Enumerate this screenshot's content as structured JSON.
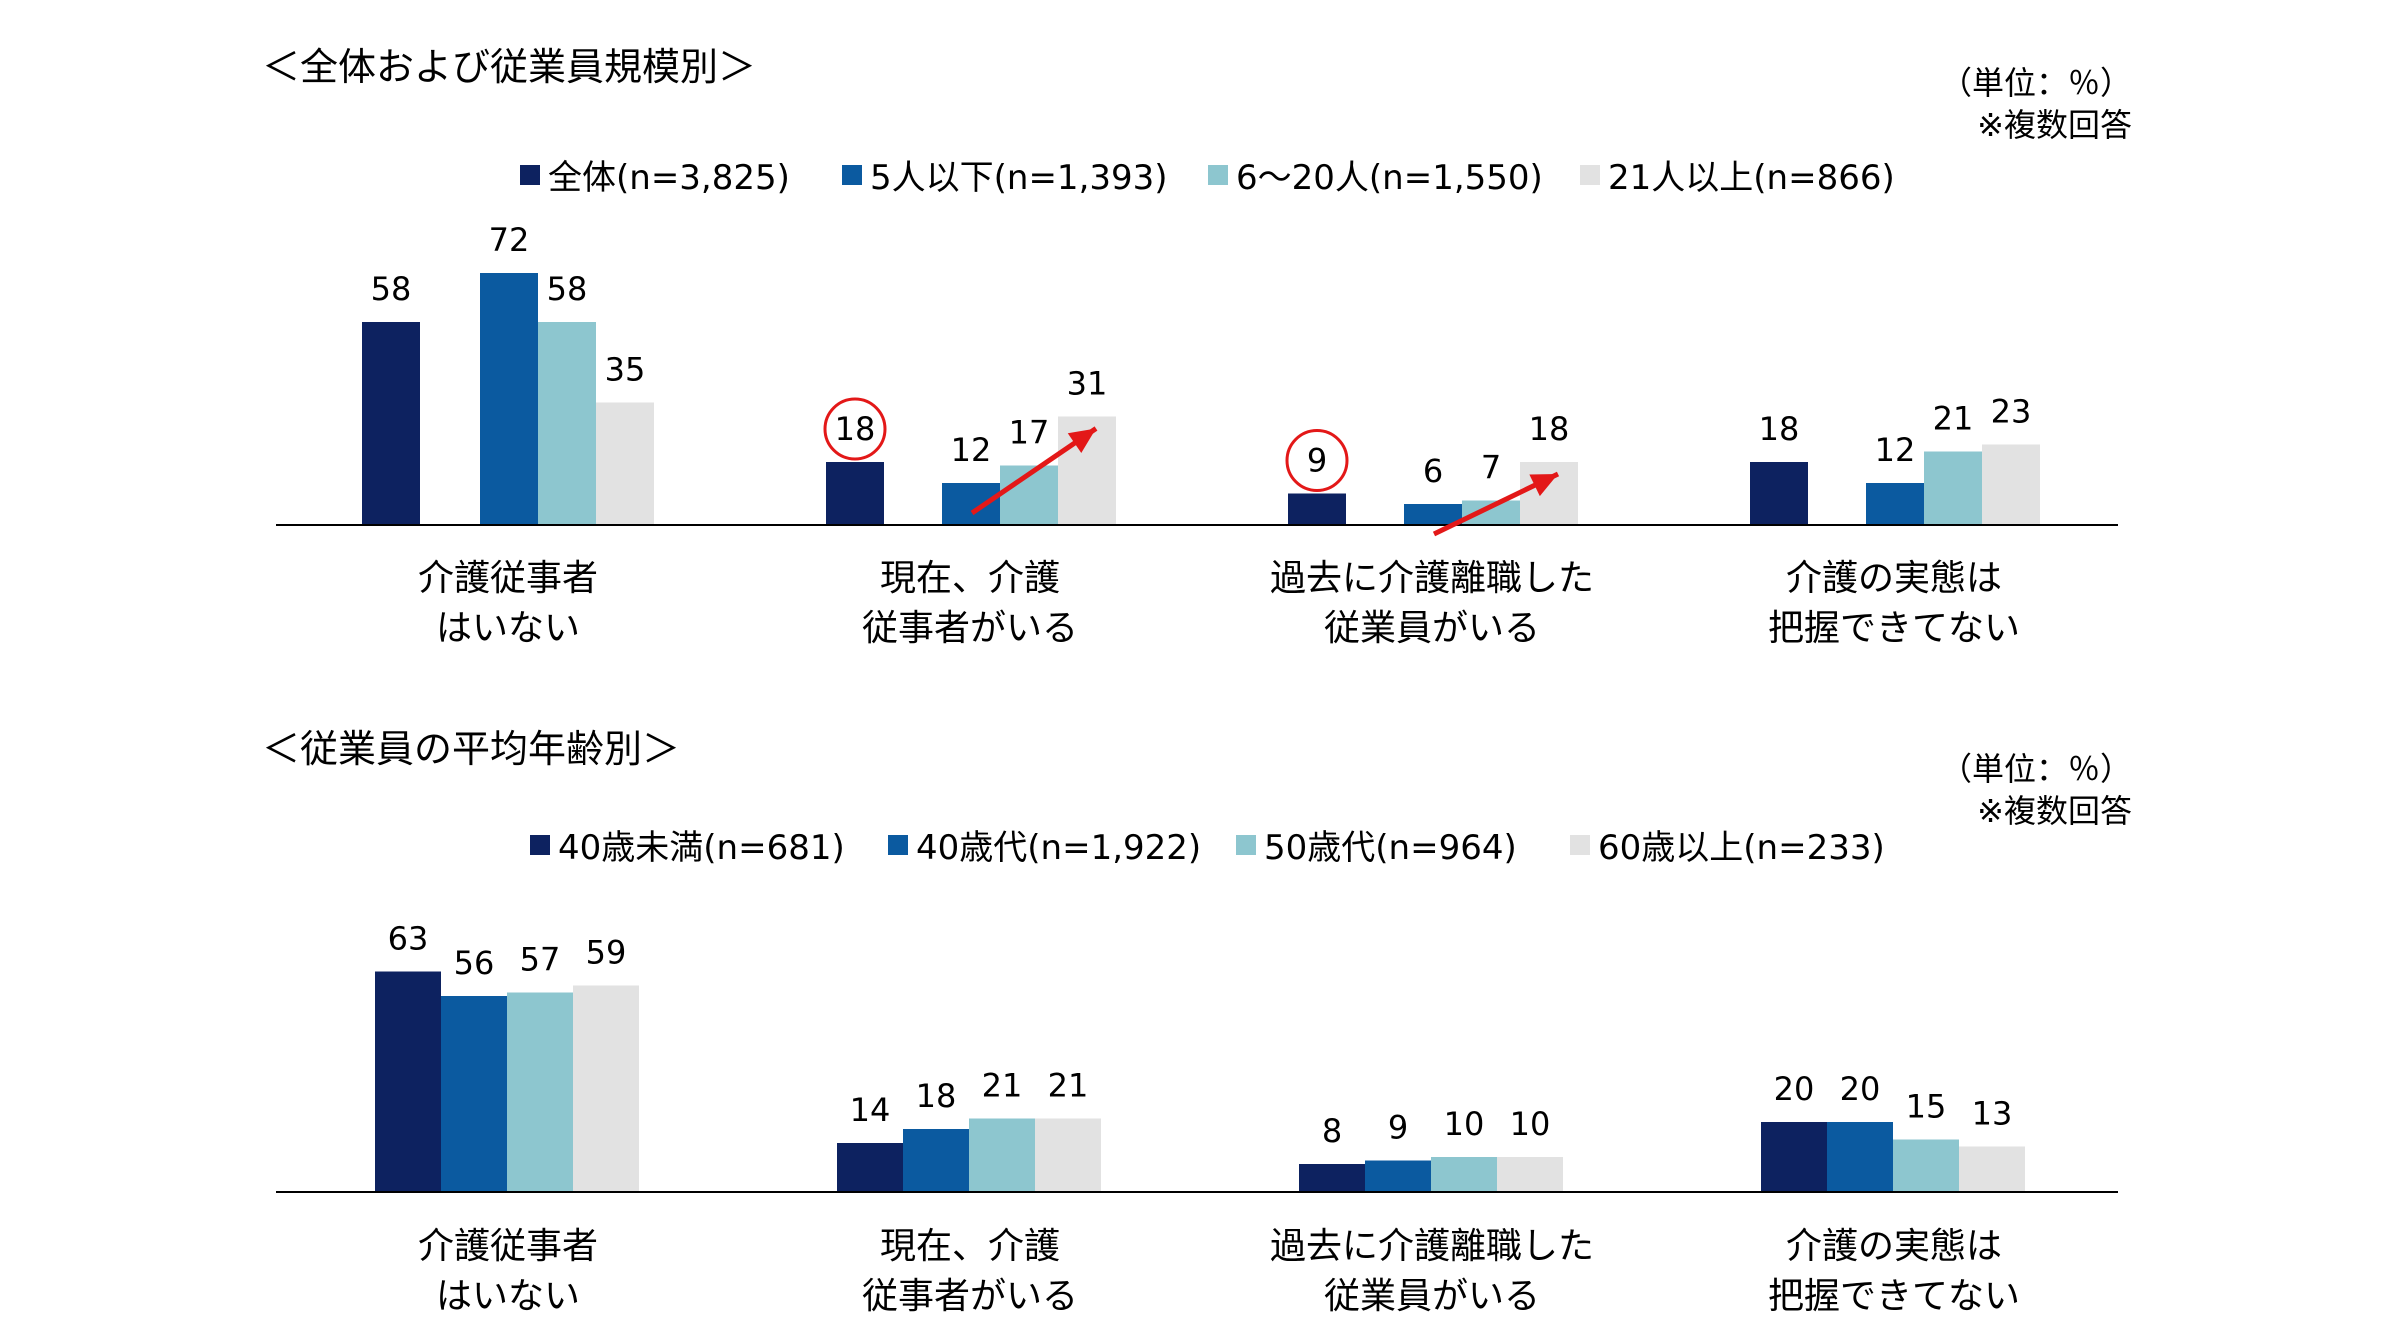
{
  "colors": {
    "navy": "#0d2260",
    "blue": "#0b5aa0",
    "teal": "#8dc6cf",
    "gray": "#e2e2e2",
    "highlight": "#e31818",
    "axis": "#000000"
  },
  "chart_data": [
    {
      "type": "bar",
      "title": "＜全体および従業員規模別＞",
      "unit": "（単位：％）",
      "note": "※複数回答",
      "categories": [
        [
          "介護従事者",
          "はいない"
        ],
        [
          "現在、介護",
          "従事者がいる"
        ],
        [
          "過去に介護離職した",
          "従業員がいる"
        ],
        [
          "介護の実態は",
          "把握できてない"
        ]
      ],
      "series": [
        {
          "name": "全体(n=3,825)",
          "color": "#0d2260",
          "values": [
            58,
            18,
            9,
            18
          ]
        },
        {
          "name": "5人以下(n=1,393)",
          "color": "#0b5aa0",
          "values": [
            72,
            12,
            6,
            12
          ]
        },
        {
          "name": "6～20人(n=1,550)",
          "color": "#8dc6cf",
          "values": [
            58,
            17,
            7,
            21
          ]
        },
        {
          "name": "21人以上(n=866)",
          "color": "#e2e2e2",
          "values": [
            35,
            31,
            18,
            23
          ]
        }
      ],
      "ylim": [
        0,
        75
      ],
      "circled": [
        {
          "category": 1,
          "series": 0
        },
        {
          "category": 2,
          "series": 0
        }
      ],
      "trend_arrows": [
        {
          "category": 1,
          "from_series": 1,
          "to_series": 3
        },
        {
          "category": 2,
          "from_series": 1,
          "to_series": 3
        }
      ]
    },
    {
      "type": "bar",
      "title": "＜従業員の平均年齢別＞",
      "unit": "（単位：％）",
      "note": "※複数回答",
      "categories": [
        [
          "介護従事者",
          "はいない"
        ],
        [
          "現在、介護",
          "従事者がいる"
        ],
        [
          "過去に介護離職した",
          "従業員がいる"
        ],
        [
          "介護の実態は",
          "把握できてない"
        ]
      ],
      "series": [
        {
          "name": "40歳未満(n=681)",
          "color": "#0d2260",
          "values": [
            63,
            14,
            8,
            20
          ]
        },
        {
          "name": "40歳代(n=1,922)",
          "color": "#0b5aa0",
          "values": [
            56,
            18,
            9,
            20
          ]
        },
        {
          "name": "50歳代(n=964)",
          "color": "#8dc6cf",
          "values": [
            57,
            21,
            10,
            15
          ]
        },
        {
          "name": "60歳以上(n=233)",
          "color": "#e2e2e2",
          "values": [
            59,
            21,
            10,
            13
          ]
        }
      ],
      "ylim": [
        0,
        75
      ],
      "circled": [],
      "trend_arrows": []
    }
  ]
}
